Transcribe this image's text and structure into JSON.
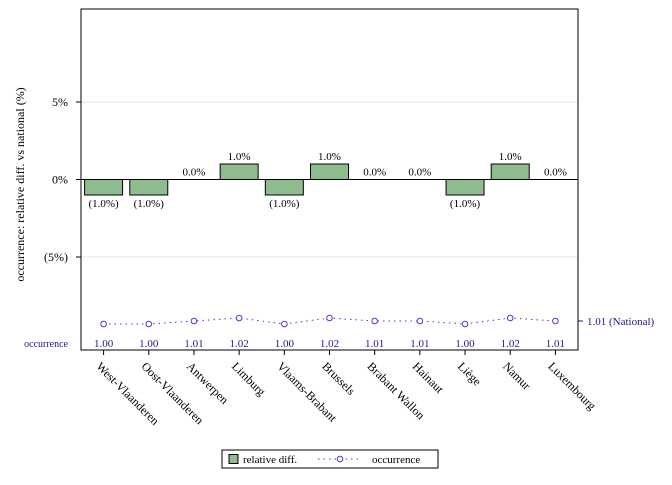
{
  "chart_data": {
    "type": "bar",
    "title": "",
    "ylabel": "occurrence: relative diff. vs national (%)",
    "ylim": [
      -11,
      11
    ],
    "yticks": [
      {
        "value": 5,
        "label": "5%"
      },
      {
        "value": 0,
        "label": "0%"
      },
      {
        "value": -5,
        "label": "(5%)"
      }
    ],
    "grid": true,
    "categories": [
      "West-Vlaanderen",
      "Oost-Vlaanderen",
      "Antwerpen",
      "Limburg",
      "Vlaams-Brabant",
      "Brussels",
      "Brabant Wallon",
      "Hainaut",
      "Liège",
      "Namur",
      "Luxembourg"
    ],
    "series": [
      {
        "name": "relative diff.",
        "type": "bar",
        "values": [
          -1.0,
          -1.0,
          0.0,
          1.0,
          -1.0,
          1.0,
          0.0,
          0.0,
          -1.0,
          1.0,
          0.0
        ],
        "labels": [
          "(1.0%)",
          "(1.0%)",
          "0.0%",
          "1.0%",
          "(1.0%)",
          "1.0%",
          "0.0%",
          "0.0%",
          "(1.0%)",
          "1.0%",
          "0.0%"
        ],
        "color": "#8fbc8f"
      },
      {
        "name": "occurrence",
        "type": "line",
        "values": [
          1.0,
          1.0,
          1.01,
          1.02,
          1.0,
          1.02,
          1.01,
          1.01,
          1.0,
          1.02,
          1.01
        ],
        "labels": [
          "1.00",
          "1.00",
          "1.01",
          "1.02",
          "1.00",
          "1.02",
          "1.01",
          "1.01",
          "1.00",
          "1.02",
          "1.01"
        ],
        "color": "#4040d0"
      }
    ],
    "occurrence_row_label": "occurrence",
    "national": {
      "value": 1.01,
      "label": "1.01 (National)"
    },
    "legend": {
      "position": "bottom",
      "items": [
        "relative diff.",
        "occurrence"
      ]
    }
  }
}
